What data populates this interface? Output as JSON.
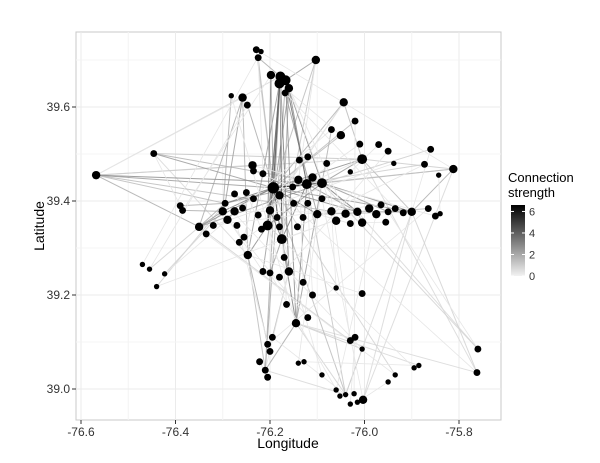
{
  "chart_data": {
    "type": "scatter",
    "subtype": "network-on-coordinates",
    "title": "",
    "xlabel": "Longitude",
    "ylabel": "Latitude",
    "xlim": [
      -76.61,
      -75.72
    ],
    "ylim": [
      38.93,
      39.74
    ],
    "x_ticks": [
      -76.6,
      -76.4,
      -76.2,
      -76.0,
      -75.8
    ],
    "x_tick_labels": [
      "-76.6",
      "-76.4",
      "-76.2",
      "-76.0",
      "-75.8"
    ],
    "y_ticks": [
      39.0,
      39.2,
      39.4,
      39.6
    ],
    "y_tick_labels": [
      "39.0",
      "39.2",
      "39.4",
      "39.6"
    ],
    "grid": true,
    "legend": {
      "title": "Connection strength",
      "position": "right",
      "type": "colorbar",
      "range": [
        0,
        6.6
      ],
      "ticks": [
        0,
        2,
        4,
        6
      ],
      "tick_labels": [
        "0",
        "2",
        "4",
        "6"
      ],
      "low_color": "#f0f0f0",
      "high_color": "#000000"
    },
    "nodes": [
      {
        "lon": -76.568,
        "lat": 39.455,
        "size": 4
      },
      {
        "lon": -76.446,
        "lat": 39.501,
        "size": 3
      },
      {
        "lon": -76.229,
        "lat": 39.722,
        "size": 3
      },
      {
        "lon": -76.219,
        "lat": 39.718,
        "size": 2
      },
      {
        "lon": -76.225,
        "lat": 39.705,
        "size": 3
      },
      {
        "lon": -76.103,
        "lat": 39.7,
        "size": 4
      },
      {
        "lon": -76.198,
        "lat": 39.668,
        "size": 4
      },
      {
        "lon": -76.178,
        "lat": 39.665,
        "size": 5
      },
      {
        "lon": -76.167,
        "lat": 39.657,
        "size": 5
      },
      {
        "lon": -76.18,
        "lat": 39.65,
        "size": 5
      },
      {
        "lon": -76.16,
        "lat": 39.64,
        "size": 4
      },
      {
        "lon": -76.168,
        "lat": 39.63,
        "size": 3
      },
      {
        "lon": -76.282,
        "lat": 39.624,
        "size": 2
      },
      {
        "lon": -76.258,
        "lat": 39.62,
        "size": 4
      },
      {
        "lon": -76.248,
        "lat": 39.604,
        "size": 3
      },
      {
        "lon": -76.044,
        "lat": 39.61,
        "size": 4
      },
      {
        "lon": -76.02,
        "lat": 39.57,
        "size": 3
      },
      {
        "lon": -76.07,
        "lat": 39.552,
        "size": 3
      },
      {
        "lon": -76.05,
        "lat": 39.54,
        "size": 4
      },
      {
        "lon": -76.01,
        "lat": 39.521,
        "size": 3
      },
      {
        "lon": -75.97,
        "lat": 39.52,
        "size": 3
      },
      {
        "lon": -75.95,
        "lat": 39.506,
        "size": 3
      },
      {
        "lon": -76.005,
        "lat": 39.489,
        "size": 5
      },
      {
        "lon": -76.03,
        "lat": 39.462,
        "size": 2
      },
      {
        "lon": -75.938,
        "lat": 39.48,
        "size": 2
      },
      {
        "lon": -75.86,
        "lat": 39.51,
        "size": 3
      },
      {
        "lon": -75.873,
        "lat": 39.478,
        "size": 3
      },
      {
        "lon": -75.812,
        "lat": 39.468,
        "size": 4
      },
      {
        "lon": -75.843,
        "lat": 39.455,
        "size": 2
      },
      {
        "lon": -76.12,
        "lat": 39.494,
        "size": 3
      },
      {
        "lon": -76.138,
        "lat": 39.487,
        "size": 3
      },
      {
        "lon": -76.08,
        "lat": 39.48,
        "size": 3
      },
      {
        "lon": -76.09,
        "lat": 39.438,
        "size": 5
      },
      {
        "lon": -76.152,
        "lat": 39.43,
        "size": 3
      },
      {
        "lon": -76.193,
        "lat": 39.428,
        "size": 6
      },
      {
        "lon": -76.18,
        "lat": 39.412,
        "size": 4
      },
      {
        "lon": -76.14,
        "lat": 39.445,
        "size": 4
      },
      {
        "lon": -76.122,
        "lat": 39.436,
        "size": 5
      },
      {
        "lon": -76.11,
        "lat": 39.45,
        "size": 4
      },
      {
        "lon": -76.237,
        "lat": 39.476,
        "size": 4
      },
      {
        "lon": -76.235,
        "lat": 39.464,
        "size": 3
      },
      {
        "lon": -76.215,
        "lat": 39.458,
        "size": 3
      },
      {
        "lon": -76.275,
        "lat": 39.415,
        "size": 3
      },
      {
        "lon": -76.25,
        "lat": 39.418,
        "size": 3
      },
      {
        "lon": -76.235,
        "lat": 39.405,
        "size": 3
      },
      {
        "lon": -76.295,
        "lat": 39.395,
        "size": 3
      },
      {
        "lon": -76.275,
        "lat": 39.378,
        "size": 4
      },
      {
        "lon": -76.258,
        "lat": 39.385,
        "size": 3
      },
      {
        "lon": -76.3,
        "lat": 39.378,
        "size": 4
      },
      {
        "lon": -76.29,
        "lat": 39.36,
        "size": 4
      },
      {
        "lon": -76.27,
        "lat": 39.348,
        "size": 3
      },
      {
        "lon": -76.32,
        "lat": 39.348,
        "size": 3
      },
      {
        "lon": -76.335,
        "lat": 39.33,
        "size": 3
      },
      {
        "lon": -76.35,
        "lat": 39.345,
        "size": 4
      },
      {
        "lon": -76.39,
        "lat": 39.39,
        "size": 3
      },
      {
        "lon": -76.385,
        "lat": 39.38,
        "size": 3
      },
      {
        "lon": -76.2,
        "lat": 39.38,
        "size": 4
      },
      {
        "lon": -76.185,
        "lat": 39.365,
        "size": 3
      },
      {
        "lon": -76.225,
        "lat": 39.37,
        "size": 3
      },
      {
        "lon": -76.205,
        "lat": 39.348,
        "size": 5
      },
      {
        "lon": -76.218,
        "lat": 39.34,
        "size": 3
      },
      {
        "lon": -76.255,
        "lat": 39.323,
        "size": 3
      },
      {
        "lon": -76.265,
        "lat": 39.312,
        "size": 3
      },
      {
        "lon": -76.247,
        "lat": 39.285,
        "size": 4
      },
      {
        "lon": -76.175,
        "lat": 39.319,
        "size": 5
      },
      {
        "lon": -76.142,
        "lat": 39.345,
        "size": 3
      },
      {
        "lon": -76.13,
        "lat": 39.365,
        "size": 3
      },
      {
        "lon": -76.1,
        "lat": 39.372,
        "size": 4
      },
      {
        "lon": -76.07,
        "lat": 39.378,
        "size": 4
      },
      {
        "lon": -76.04,
        "lat": 39.373,
        "size": 4
      },
      {
        "lon": -76.015,
        "lat": 39.377,
        "size": 4
      },
      {
        "lon": -75.99,
        "lat": 39.384,
        "size": 4
      },
      {
        "lon": -75.975,
        "lat": 39.372,
        "size": 4
      },
      {
        "lon": -75.95,
        "lat": 39.377,
        "size": 3
      },
      {
        "lon": -75.935,
        "lat": 39.384,
        "size": 3
      },
      {
        "lon": -75.918,
        "lat": 39.375,
        "size": 3
      },
      {
        "lon": -75.9,
        "lat": 39.377,
        "size": 4
      },
      {
        "lon": -75.865,
        "lat": 39.384,
        "size": 3
      },
      {
        "lon": -75.85,
        "lat": 39.368,
        "size": 3
      },
      {
        "lon": -75.84,
        "lat": 39.373,
        "size": 2
      },
      {
        "lon": -75.965,
        "lat": 39.392,
        "size": 3
      },
      {
        "lon": -76.005,
        "lat": 39.354,
        "size": 4
      },
      {
        "lon": -76.03,
        "lat": 39.352,
        "size": 3
      },
      {
        "lon": -76.06,
        "lat": 39.358,
        "size": 4
      },
      {
        "lon": -75.955,
        "lat": 39.355,
        "size": 3
      },
      {
        "lon": -76.15,
        "lat": 39.395,
        "size": 3
      },
      {
        "lon": -76.12,
        "lat": 39.395,
        "size": 3
      },
      {
        "lon": -76.09,
        "lat": 39.405,
        "size": 3
      },
      {
        "lon": -76.18,
        "lat": 39.345,
        "size": 3
      },
      {
        "lon": -76.215,
        "lat": 39.25,
        "size": 3
      },
      {
        "lon": -76.2,
        "lat": 39.247,
        "size": 3
      },
      {
        "lon": -76.16,
        "lat": 39.25,
        "size": 4
      },
      {
        "lon": -76.17,
        "lat": 39.28,
        "size": 3
      },
      {
        "lon": -76.13,
        "lat": 39.227,
        "size": 3
      },
      {
        "lon": -76.18,
        "lat": 39.238,
        "size": 3
      },
      {
        "lon": -76.11,
        "lat": 39.2,
        "size": 3
      },
      {
        "lon": -76.165,
        "lat": 39.18,
        "size": 3
      },
      {
        "lon": -76.145,
        "lat": 39.14,
        "size": 4
      },
      {
        "lon": -76.12,
        "lat": 39.152,
        "size": 3
      },
      {
        "lon": -76.06,
        "lat": 39.215,
        "size": 2
      },
      {
        "lon": -76.005,
        "lat": 39.203,
        "size": 3
      },
      {
        "lon": -76.195,
        "lat": 39.11,
        "size": 3
      },
      {
        "lon": -76.205,
        "lat": 39.095,
        "size": 3
      },
      {
        "lon": -76.2,
        "lat": 39.08,
        "size": 3
      },
      {
        "lon": -76.21,
        "lat": 39.04,
        "size": 3
      },
      {
        "lon": -76.205,
        "lat": 39.025,
        "size": 3
      },
      {
        "lon": -76.222,
        "lat": 39.058,
        "size": 3
      },
      {
        "lon": -76.14,
        "lat": 39.055,
        "size": 2
      },
      {
        "lon": -76.128,
        "lat": 39.058,
        "size": 2
      },
      {
        "lon": -76.09,
        "lat": 39.03,
        "size": 2
      },
      {
        "lon": -76.47,
        "lat": 39.265,
        "size": 2
      },
      {
        "lon": -76.455,
        "lat": 39.255,
        "size": 2
      },
      {
        "lon": -76.423,
        "lat": 39.245,
        "size": 2
      },
      {
        "lon": -76.44,
        "lat": 39.218,
        "size": 2
      },
      {
        "lon": -76.03,
        "lat": 39.103,
        "size": 3
      },
      {
        "lon": -76.02,
        "lat": 39.11,
        "size": 3
      },
      {
        "lon": -76.005,
        "lat": 39.085,
        "size": 2
      },
      {
        "lon": -75.935,
        "lat": 39.03,
        "size": 2
      },
      {
        "lon": -75.895,
        "lat": 39.045,
        "size": 2
      },
      {
        "lon": -75.885,
        "lat": 39.05,
        "size": 2
      },
      {
        "lon": -75.76,
        "lat": 39.085,
        "size": 3
      },
      {
        "lon": -75.762,
        "lat": 39.035,
        "size": 3
      },
      {
        "lon": -76.003,
        "lat": 38.977,
        "size": 4
      },
      {
        "lon": -76.052,
        "lat": 38.985,
        "size": 2
      },
      {
        "lon": -76.04,
        "lat": 38.988,
        "size": 2
      },
      {
        "lon": -76.022,
        "lat": 38.99,
        "size": 2
      },
      {
        "lon": -76.03,
        "lat": 38.968,
        "size": 2
      },
      {
        "lon": -76.06,
        "lat": 38.998,
        "size": 2
      },
      {
        "lon": -76.015,
        "lat": 38.972,
        "size": 2
      },
      {
        "lon": -75.95,
        "lat": 39.015,
        "size": 2
      }
    ],
    "edges": [
      [
        0,
        34,
        2.5
      ],
      [
        0,
        32,
        3.0
      ],
      [
        0,
        45,
        1.5
      ],
      [
        0,
        53,
        2.0
      ],
      [
        0,
        7,
        0.6
      ],
      [
        0,
        22,
        1.0
      ],
      [
        0,
        68,
        1.5
      ],
      [
        0,
        39,
        0.8
      ],
      [
        1,
        34,
        2.5
      ],
      [
        1,
        32,
        1.8
      ],
      [
        1,
        22,
        1.2
      ],
      [
        1,
        63,
        0.6
      ],
      [
        2,
        34,
        1.0
      ],
      [
        4,
        34,
        1.5
      ],
      [
        4,
        7,
        2.0
      ],
      [
        5,
        8,
        2.5
      ],
      [
        5,
        34,
        1.5
      ],
      [
        5,
        64,
        1.2
      ],
      [
        6,
        34,
        2.0
      ],
      [
        6,
        59,
        3.5
      ],
      [
        7,
        34,
        4.5
      ],
      [
        7,
        64,
        5.0
      ],
      [
        7,
        59,
        4.0
      ],
      [
        7,
        91,
        3.5
      ],
      [
        8,
        32,
        3.5
      ],
      [
        8,
        37,
        4.0
      ],
      [
        8,
        97,
        3.0
      ],
      [
        9,
        34,
        4.0
      ],
      [
        9,
        56,
        3.5
      ],
      [
        10,
        37,
        3.0
      ],
      [
        10,
        89,
        2.5
      ],
      [
        11,
        67,
        2.5
      ],
      [
        12,
        48,
        2.0
      ],
      [
        13,
        45,
        2.5
      ],
      [
        13,
        53,
        2.0
      ],
      [
        14,
        34,
        2.0
      ],
      [
        13,
        63,
        1.8
      ],
      [
        15,
        22,
        1.5
      ],
      [
        15,
        34,
        1.8
      ],
      [
        15,
        56,
        1.2
      ],
      [
        16,
        34,
        1.5
      ],
      [
        17,
        32,
        1.8
      ],
      [
        18,
        34,
        1.5
      ],
      [
        22,
        34,
        3.0
      ],
      [
        22,
        32,
        2.5
      ],
      [
        22,
        76,
        1.5
      ],
      [
        27,
        32,
        1.5
      ],
      [
        27,
        76,
        2.0
      ],
      [
        27,
        22,
        1.0
      ],
      [
        27,
        37,
        1.2
      ],
      [
        25,
        32,
        1.0
      ],
      [
        26,
        34,
        1.0
      ],
      [
        34,
        32,
        5.5
      ],
      [
        34,
        37,
        6.0
      ],
      [
        34,
        45,
        3.5
      ],
      [
        34,
        53,
        3.0
      ],
      [
        34,
        48,
        3.5
      ],
      [
        34,
        56,
        4.0
      ],
      [
        34,
        59,
        4.5
      ],
      [
        34,
        64,
        4.5
      ],
      [
        34,
        67,
        3.5
      ],
      [
        34,
        70,
        3.0
      ],
      [
        34,
        76,
        2.5
      ],
      [
        32,
        70,
        3.5
      ],
      [
        32,
        76,
        3.0
      ],
      [
        32,
        73,
        2.5
      ],
      [
        32,
        59,
        3.0
      ],
      [
        32,
        97,
        2.5
      ],
      [
        32,
        53,
        2.5
      ],
      [
        37,
        64,
        3.5
      ],
      [
        37,
        97,
        3.0
      ],
      [
        37,
        70,
        2.5
      ],
      [
        37,
        45,
        2.5
      ],
      [
        45,
        53,
        2.0
      ],
      [
        48,
        53,
        2.5
      ],
      [
        46,
        49,
        2.5
      ],
      [
        54,
        45,
        2.0
      ],
      [
        55,
        48,
        2.0
      ],
      [
        56,
        64,
        3.5
      ],
      [
        59,
        63,
        3.0
      ],
      [
        59,
        64,
        2.5
      ],
      [
        64,
        90,
        2.5
      ],
      [
        64,
        91,
        3.0
      ],
      [
        64,
        97,
        3.5
      ],
      [
        63,
        102,
        2.0
      ],
      [
        63,
        104,
        1.5
      ],
      [
        91,
        101,
        1.5
      ],
      [
        97,
        104,
        2.0
      ],
      [
        97,
        116,
        1.0
      ],
      [
        70,
        81,
        1.5
      ],
      [
        70,
        76,
        2.0
      ],
      [
        67,
        76,
        2.0
      ],
      [
        73,
        77,
        1.5
      ],
      [
        111,
        53,
        0.8
      ],
      [
        112,
        48,
        0.8
      ],
      [
        113,
        45,
        0.8
      ],
      [
        114,
        53,
        0.8
      ],
      [
        97,
        121,
        0.6
      ],
      [
        97,
        119,
        0.6
      ],
      [
        97,
        124,
        0.8
      ],
      [
        104,
        124,
        0.6
      ],
      [
        116,
        124,
        1.0
      ],
      [
        124,
        76,
        0.6
      ],
      [
        122,
        76,
        0.6
      ],
      [
        120,
        70,
        0.6
      ],
      [
        34,
        124,
        1.5
      ],
      [
        37,
        124,
        1.2
      ],
      [
        34,
        117,
        0.8
      ],
      [
        32,
        120,
        0.8
      ],
      [
        22,
        121,
        0.6
      ],
      [
        76,
        121,
        0.8
      ],
      [
        27,
        122,
        0.6
      ],
      [
        8,
        104,
        2.0
      ],
      [
        7,
        104,
        2.0
      ],
      [
        9,
        63,
        2.5
      ],
      [
        10,
        64,
        2.0
      ]
    ]
  }
}
